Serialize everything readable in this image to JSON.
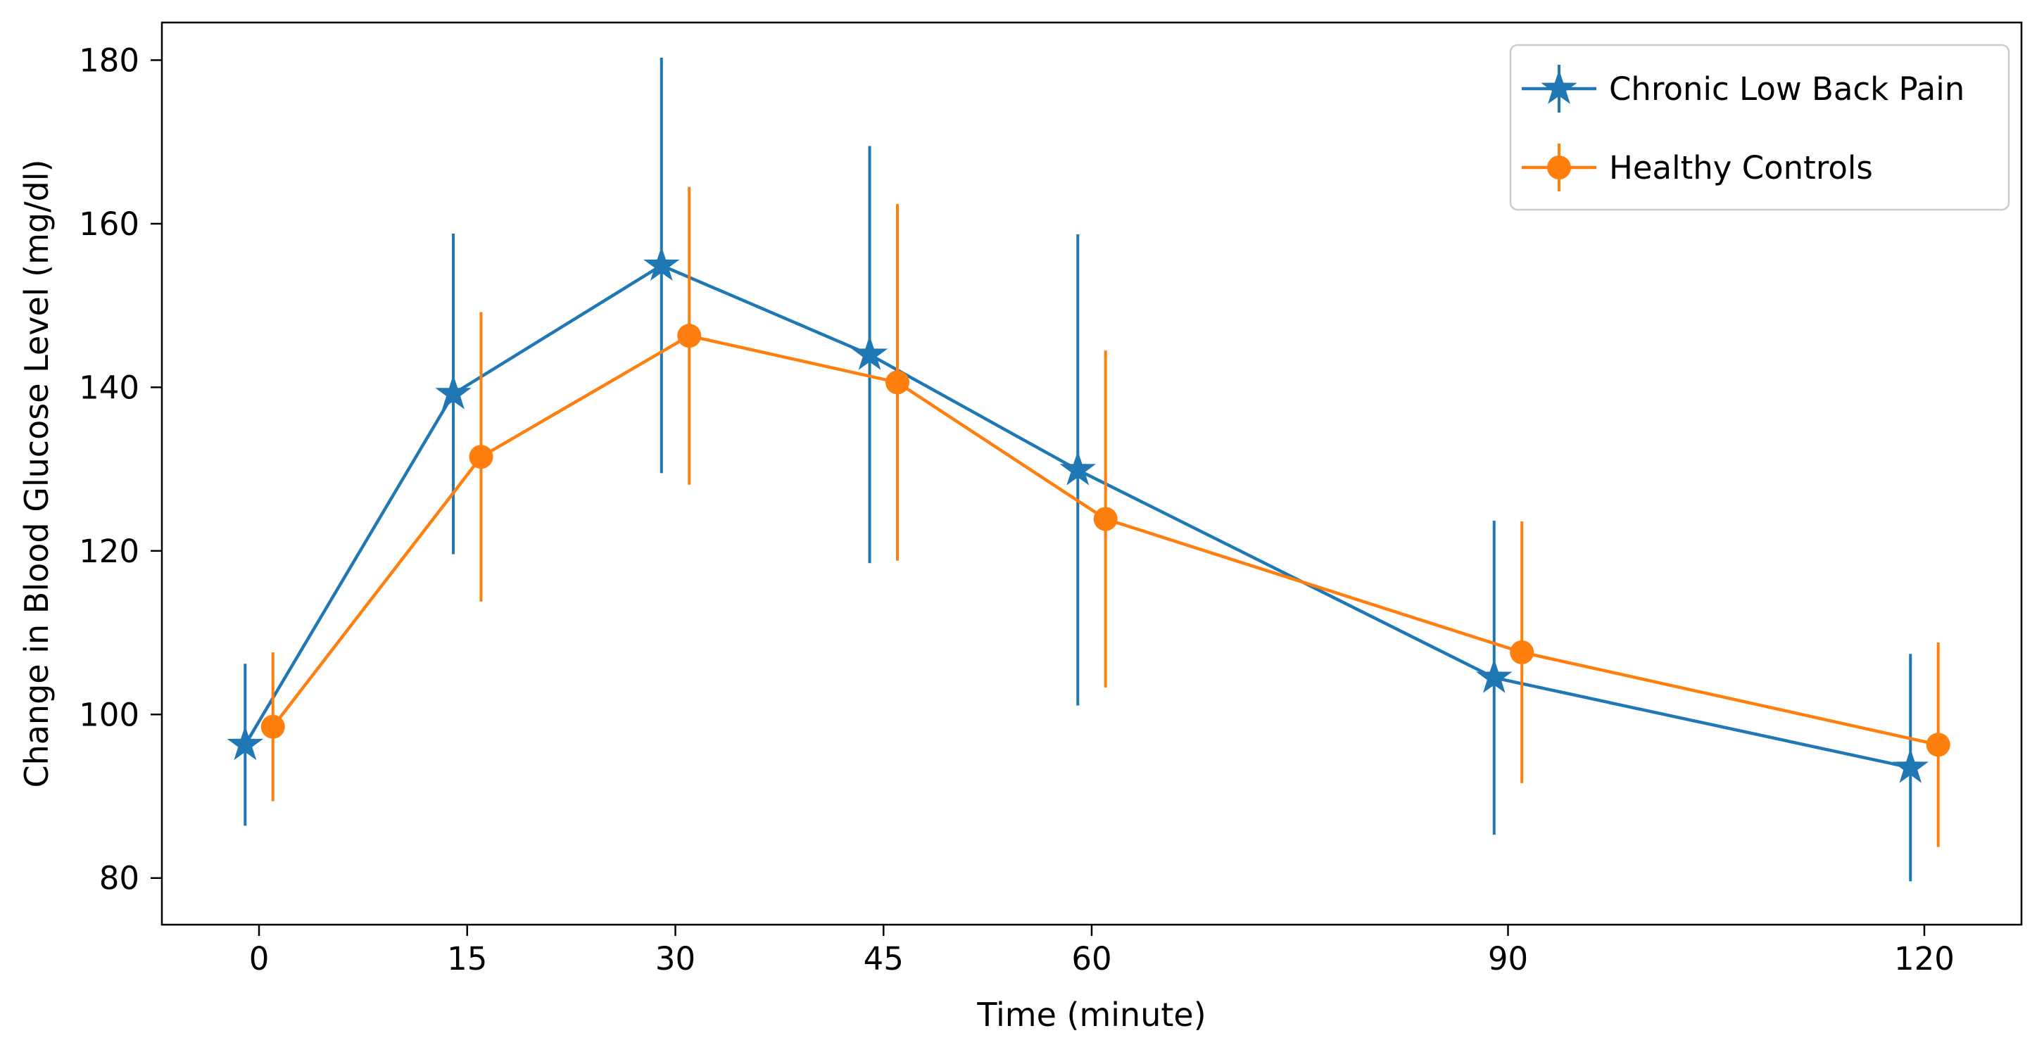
{
  "figure": {
    "background": "#ffffff",
    "text_color": "#000000",
    "spine_color": "#000000",
    "legend_border_color": "#cccccc"
  },
  "chart_data": {
    "type": "line",
    "title": "",
    "xlabel": "Time (minute)",
    "ylabel": "Change in Blood Glucose Level (mg/dl)",
    "grid": false,
    "legend_position": "upper right",
    "xlim": [
      -7,
      127
    ],
    "ylim": [
      74.3,
      184.6
    ],
    "x_ticks": [
      0,
      15,
      30,
      45,
      60,
      90,
      120
    ],
    "y_ticks": [
      80,
      100,
      120,
      140,
      160,
      180
    ],
    "x": [
      0,
      15,
      30,
      45,
      60,
      90,
      120
    ],
    "series": [
      {
        "name": "Chronic Low Back Pain",
        "color": "#1f77b4",
        "marker": "star",
        "x_offset": -1,
        "values": [
          96.3,
          139.2,
          154.9,
          144.0,
          129.9,
          104.5,
          93.5
        ],
        "errors": [
          9.9,
          19.6,
          25.4,
          25.5,
          28.8,
          19.2,
          13.9
        ]
      },
      {
        "name": "Healthy Controls",
        "color": "#ff7f0e",
        "marker": "circle",
        "x_offset": 1,
        "values": [
          98.5,
          131.5,
          146.3,
          140.6,
          123.9,
          107.6,
          96.3
        ],
        "errors": [
          9.1,
          17.7,
          18.2,
          21.8,
          20.6,
          16.0,
          12.5
        ]
      }
    ]
  }
}
